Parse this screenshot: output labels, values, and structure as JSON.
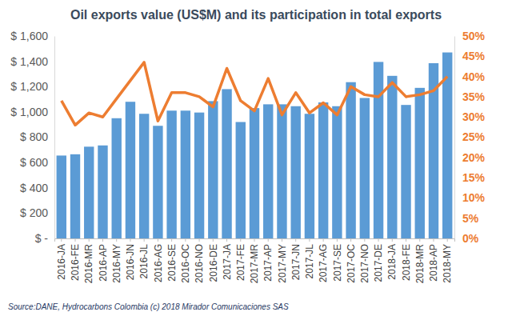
{
  "chart_data": {
    "type": "bar",
    "title": "Oil exports value (US$M) and its participation in total exports",
    "source": "Source:DANE,  Hydrocarbons Colombia (c) 2018 Mirador Comunicaciones SAS",
    "categories": [
      "2016-JA",
      "2016-FE",
      "2016-MR",
      "2016-AP",
      "2016-MY",
      "2016-JN",
      "2016-JL",
      "2016-AG",
      "2016-SE",
      "2016-OC",
      "2016-NO",
      "2016-DE",
      "2017-JA",
      "2017-FE",
      "2017-MR",
      "2017-AP",
      "2017-MY",
      "2017-JN",
      "2017-JL",
      "2017-AG",
      "2017-SE",
      "2017-OC",
      "2017-NO",
      "2017-DE",
      "2018-JA",
      "2018-FE",
      "2018-MR",
      "2018-AP",
      "2018-MY"
    ],
    "series": [
      {
        "type": "bar",
        "color": "#5b9bd5",
        "values": [
          655,
          665,
          725,
          735,
          950,
          1080,
          985,
          890,
          1010,
          1010,
          995,
          1085,
          1180,
          920,
          1030,
          1060,
          1060,
          1045,
          985,
          1075,
          1045,
          1235,
          1110,
          1395,
          1285,
          1055,
          1190,
          1385,
          1470
        ]
      },
      {
        "type": "line",
        "axis": "y2",
        "color": "#ed7d31",
        "values": [
          34,
          28,
          31,
          30,
          34.5,
          39,
          43.5,
          29,
          36,
          36,
          35,
          32.5,
          42,
          34,
          31.5,
          39.5,
          30.5,
          36,
          31,
          33.5,
          30.5,
          37.5,
          35.5,
          35,
          38.5,
          35,
          35.5,
          36.5,
          40
        ]
      }
    ],
    "ylim": [
      0,
      1600
    ],
    "yticks": [
      {
        "value": 0,
        "label": "$ -"
      },
      {
        "value": 200,
        "label": "$ 200"
      },
      {
        "value": 400,
        "label": "$ 400"
      },
      {
        "value": 600,
        "label": "$ 600"
      },
      {
        "value": 800,
        "label": "$ 800"
      },
      {
        "value": 1000,
        "label": "$ 1,000"
      },
      {
        "value": 1200,
        "label": "$ 1,200"
      },
      {
        "value": 1400,
        "label": "$ 1,400"
      },
      {
        "value": 1600,
        "label": "$ 1,600"
      }
    ],
    "y2lim": [
      0,
      50
    ],
    "y2ticks": [
      {
        "value": 0,
        "label": "0%"
      },
      {
        "value": 5,
        "label": "5%"
      },
      {
        "value": 10,
        "label": "10%"
      },
      {
        "value": 15,
        "label": "15%"
      },
      {
        "value": 20,
        "label": "20%"
      },
      {
        "value": 25,
        "label": "25%"
      },
      {
        "value": 30,
        "label": "30%"
      },
      {
        "value": 35,
        "label": "35%"
      },
      {
        "value": 40,
        "label": "40%"
      },
      {
        "value": 45,
        "label": "45%"
      },
      {
        "value": 50,
        "label": "50%"
      }
    ],
    "grid": false
  }
}
